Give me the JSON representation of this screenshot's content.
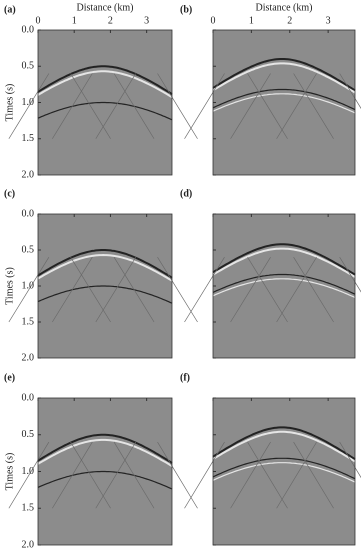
{
  "panels": [
    {
      "label": "(a)"
    },
    {
      "label": "(b)"
    },
    {
      "label": "(c)"
    },
    {
      "label": "(d)"
    },
    {
      "label": "(e)"
    },
    {
      "label": "(f)"
    }
  ],
  "x_axis": {
    "label": "Distance (km)",
    "range": [
      0,
      3.7
    ],
    "ticks": [
      0,
      1,
      2,
      3
    ]
  },
  "y_axis": {
    "label": "Times (s)",
    "range": [
      0,
      2
    ],
    "ticks": [
      {
        "value": 0,
        "label": "0.0"
      },
      {
        "value": 0.5,
        "label": "0.5"
      },
      {
        "value": 1,
        "label": "1.0"
      },
      {
        "value": 1.5,
        "label": "1.5"
      },
      {
        "value": 2,
        "label": "2.0"
      }
    ]
  }
}
